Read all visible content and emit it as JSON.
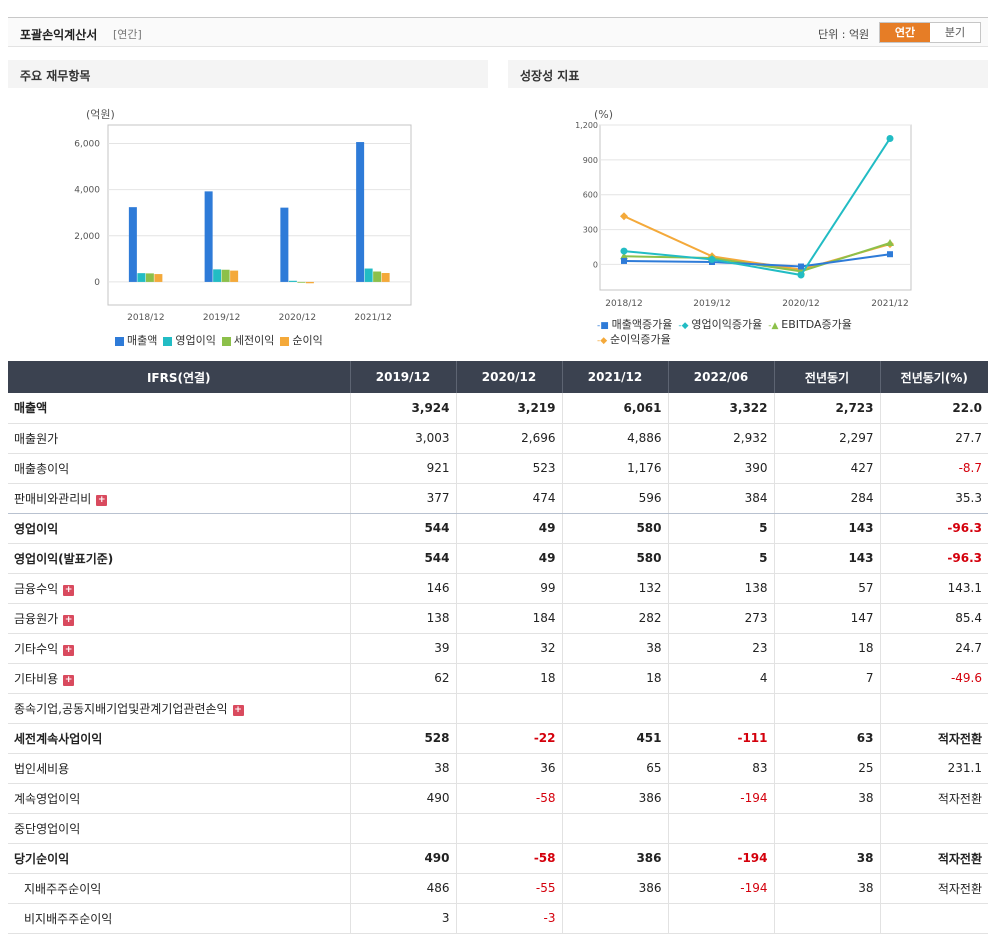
{
  "header": {
    "title": "포괄손익계산서",
    "sub": "[연간]",
    "unit": "단위 : 억원",
    "tab_annual": "연간",
    "tab_quarter": "분기"
  },
  "panels": {
    "left_title": "주요 재무항목",
    "right_title": "성장성 지표"
  },
  "colors": {
    "accent": "#e67d26",
    "sales": "#2e7bd8",
    "op": "#22bcc4",
    "pretax": "#8cc04a",
    "net": "#f4a93a",
    "neg": "#d4000c",
    "header_bg": "#3b4250"
  },
  "chart_data": [
    {
      "type": "bar",
      "ylabel": "(억원)",
      "ylim": [
        -1000,
        6800
      ],
      "yticks": [
        "6,000",
        "4,000",
        "2,000",
        "0"
      ],
      "ytick_values": [
        6000,
        4000,
        2000,
        0
      ],
      "categories": [
        "2018/12",
        "2019/12",
        "2020/12",
        "2021/12"
      ],
      "series": [
        {
          "name": "매출액",
          "values": [
            3240,
            3924,
            3219,
            6061
          ]
        },
        {
          "name": "영업이익",
          "values": [
            380,
            544,
            49,
            580
          ]
        },
        {
          "name": "세전이익",
          "values": [
            370,
            528,
            -22,
            451
          ]
        },
        {
          "name": "순이익",
          "values": [
            340,
            490,
            -58,
            386
          ]
        }
      ],
      "grid": true,
      "legend": "bottom"
    },
    {
      "type": "line",
      "ylabel": "(%)",
      "ylim": [
        -220,
        1200
      ],
      "yticks": [
        "1,200",
        "900",
        "600",
        "300",
        "0"
      ],
      "ytick_values": [
        1200,
        900,
        600,
        300,
        0
      ],
      "categories": [
        "2018/12",
        "2019/12",
        "2020/12",
        "2021/12"
      ],
      "series": [
        {
          "name": "매출액증가율",
          "values": [
            30,
            21,
            -18,
            88
          ]
        },
        {
          "name": "영업이익증가율",
          "values": [
            115,
            43,
            -91,
            1084
          ]
        },
        {
          "name": "EBITDA증가율",
          "values": [
            70,
            55,
            -60,
            185
          ]
        },
        {
          "name": "순이익증가율",
          "values": [
            415,
            70,
            -45,
            175
          ]
        }
      ],
      "grid": true,
      "legend": "bottom"
    }
  ],
  "table": {
    "headers": [
      "IFRS(연결)",
      "2019/12",
      "2020/12",
      "2021/12",
      "2022/06",
      "전년동기",
      "전년동기(%)"
    ],
    "rows": [
      {
        "label": "매출액",
        "values": [
          "3,924",
          "3,219",
          "6,061",
          "3,322",
          "2,723",
          "22.0"
        ],
        "bold": true,
        "neg": []
      },
      {
        "label": "매출원가",
        "values": [
          "3,003",
          "2,696",
          "4,886",
          "2,932",
          "2,297",
          "27.7"
        ],
        "neg": []
      },
      {
        "label": "매출총이익",
        "values": [
          "921",
          "523",
          "1,176",
          "390",
          "427",
          "-8.7"
        ],
        "neg": [
          5
        ]
      },
      {
        "label": "판매비와관리비",
        "values": [
          "377",
          "474",
          "596",
          "384",
          "284",
          "35.3"
        ],
        "plus": true,
        "sep": true,
        "neg": []
      },
      {
        "label": "영업이익",
        "values": [
          "544",
          "49",
          "580",
          "5",
          "143",
          "-96.3"
        ],
        "bold": true,
        "neg": [
          5
        ]
      },
      {
        "label": "영업이익(발표기준)",
        "values": [
          "544",
          "49",
          "580",
          "5",
          "143",
          "-96.3"
        ],
        "bold": true,
        "neg": [
          5
        ]
      },
      {
        "label": "금융수익",
        "values": [
          "146",
          "99",
          "132",
          "138",
          "57",
          "143.1"
        ],
        "plus": true,
        "neg": []
      },
      {
        "label": "금융원가",
        "values": [
          "138",
          "184",
          "282",
          "273",
          "147",
          "85.4"
        ],
        "plus": true,
        "neg": []
      },
      {
        "label": "기타수익",
        "values": [
          "39",
          "32",
          "38",
          "23",
          "18",
          "24.7"
        ],
        "plus": true,
        "neg": []
      },
      {
        "label": "기타비용",
        "values": [
          "62",
          "18",
          "18",
          "4",
          "7",
          "-49.6"
        ],
        "plus": true,
        "neg": [
          5
        ]
      },
      {
        "label": "종속기업,공동지배기업및관계기업관련손익",
        "values": [
          "",
          "",
          "",
          "",
          "",
          ""
        ],
        "plus": true,
        "neg": []
      },
      {
        "label": "세전계속사업이익",
        "values": [
          "528",
          "-22",
          "451",
          "-111",
          "63",
          "적자전환"
        ],
        "bold": true,
        "neg": [
          1,
          3
        ]
      },
      {
        "label": "법인세비용",
        "values": [
          "38",
          "36",
          "65",
          "83",
          "25",
          "231.1"
        ],
        "neg": []
      },
      {
        "label": "계속영업이익",
        "values": [
          "490",
          "-58",
          "386",
          "-194",
          "38",
          "적자전환"
        ],
        "neg": [
          1,
          3
        ]
      },
      {
        "label": "중단영업이익",
        "values": [
          "",
          "",
          "",
          "",
          "",
          ""
        ],
        "neg": []
      },
      {
        "label": "당기순이익",
        "values": [
          "490",
          "-58",
          "386",
          "-194",
          "38",
          "적자전환"
        ],
        "bold": true,
        "neg": [
          1,
          3
        ]
      },
      {
        "label": "지배주주순이익",
        "values": [
          "486",
          "-55",
          "386",
          "-194",
          "38",
          "적자전환"
        ],
        "indent": true,
        "neg": [
          1,
          3
        ]
      },
      {
        "label": "비지배주주순이익",
        "values": [
          "3",
          "-3",
          "",
          "",
          "",
          ""
        ],
        "indent": true,
        "neg": [
          1
        ]
      }
    ]
  }
}
